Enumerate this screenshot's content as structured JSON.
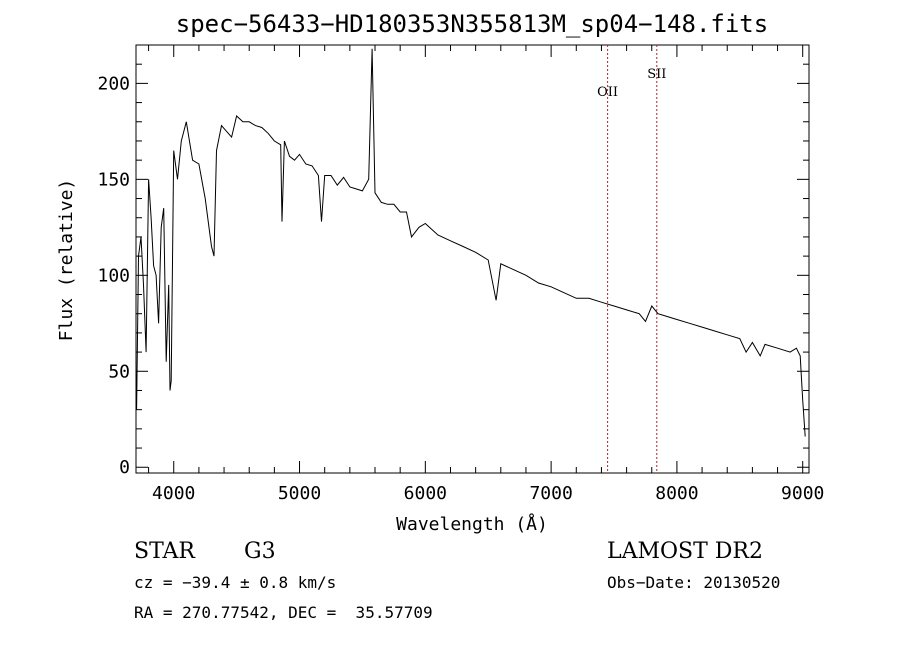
{
  "chart_data": {
    "type": "line",
    "title": "spec−56433−HD180353N355813M_sp04−148.fits",
    "xlabel": "Wavelength (Å)",
    "ylabel": "Flux (relative)",
    "xlim": [
      3700,
      9050
    ],
    "ylim": [
      -3,
      220
    ],
    "xticks": [
      4000,
      5000,
      6000,
      7000,
      8000,
      9000
    ],
    "yticks": [
      0,
      50,
      100,
      150,
      200
    ],
    "xtick_labels": [
      "4000",
      "5000",
      "6000",
      "7000",
      "8000",
      "9000"
    ],
    "ytick_labels": [
      "0",
      "50",
      "100",
      "150",
      "200"
    ],
    "series": [
      {
        "x": [
          3705,
          3720,
          3740,
          3760,
          3780,
          3800,
          3820,
          3840,
          3860,
          3880,
          3900,
          3920,
          3940,
          3960,
          3970,
          3980,
          4000,
          4030,
          4060,
          4100,
          4150,
          4200,
          4250,
          4300,
          4320,
          4340,
          4380,
          4420,
          4460,
          4500,
          4550,
          4600,
          4650,
          4700,
          4750,
          4800,
          4850,
          4861,
          4880,
          4920,
          4960,
          5000,
          5050,
          5100,
          5150,
          5175,
          5200,
          5250,
          5300,
          5350,
          5400,
          5450,
          5500,
          5550,
          5577,
          5600,
          5650,
          5700,
          5750,
          5800,
          5850,
          5890,
          5950,
          6000,
          6100,
          6200,
          6300,
          6400,
          6500,
          6563,
          6600,
          6700,
          6800,
          6900,
          7000,
          7100,
          7200,
          7300,
          7400,
          7500,
          7600,
          7700,
          7750,
          7800,
          7850,
          7900,
          8000,
          8100,
          8200,
          8300,
          8400,
          8500,
          8550,
          8600,
          8662,
          8700,
          8800,
          8900,
          8950,
          8980,
          9000,
          9020
        ],
        "y": [
          30,
          110,
          120,
          95,
          60,
          150,
          130,
          105,
          100,
          75,
          125,
          135,
          55,
          95,
          40,
          45,
          165,
          150,
          170,
          180,
          160,
          158,
          140,
          115,
          110,
          165,
          178,
          175,
          172,
          183,
          180,
          180,
          178,
          177,
          174,
          170,
          168,
          128,
          170,
          162,
          160,
          163,
          158,
          157,
          152,
          128,
          152,
          152,
          147,
          151,
          146,
          145,
          144,
          150,
          218,
          143,
          138,
          137,
          137,
          133,
          133,
          120,
          125,
          127,
          121,
          118,
          115,
          112,
          108,
          87,
          106,
          103,
          100,
          96,
          94,
          91,
          88,
          88,
          86,
          84,
          82,
          80,
          76,
          84,
          80,
          79,
          77,
          75,
          73,
          71,
          69,
          67,
          60,
          65,
          58,
          64,
          62,
          60,
          62,
          58,
          35,
          16
        ]
      }
    ],
    "reference_lines": [
      {
        "label": "OII",
        "x": 7449,
        "color": "#b3262b"
      },
      {
        "label": "SII",
        "x": 7840,
        "color": "#b3262b"
      }
    ],
    "grid": false,
    "legend": false
  },
  "info": {
    "object_class": "STAR",
    "subclass": "G3",
    "survey": "LAMOST DR2",
    "redshift": "cz = −39.4 ± 0.8 km/s",
    "obs_date": "Obs−Date: 20130520",
    "coords": "RA = 270.77542, DEC =  35.57709"
  }
}
